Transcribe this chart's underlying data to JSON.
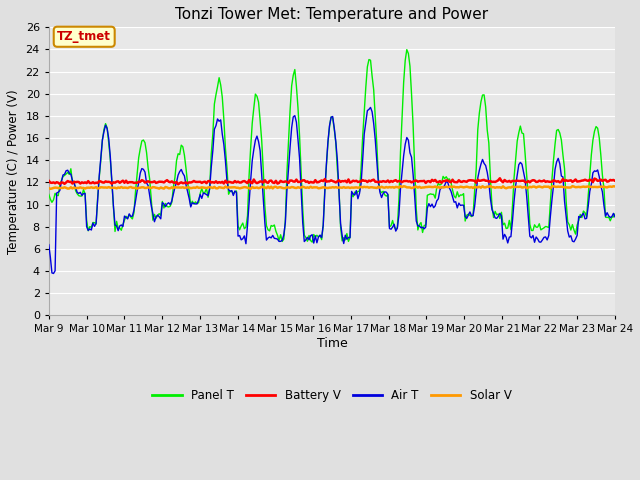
{
  "title": "Tonzi Tower Met: Temperature and Power",
  "xlabel": "Time",
  "ylabel": "Temperature (C) / Power (V)",
  "ylim": [
    0,
    26
  ],
  "yticks": [
    0,
    2,
    4,
    6,
    8,
    10,
    12,
    14,
    16,
    18,
    20,
    22,
    24,
    26
  ],
  "xtick_labels": [
    "Mar 9",
    "Mar 10",
    "Mar 11",
    "Mar 12",
    "Mar 13",
    "Mar 14",
    "Mar 15",
    "Mar 16",
    "Mar 17",
    "Mar 18",
    "Mar 19",
    "Mar 20",
    "Mar 21",
    "Mar 22",
    "Mar 23",
    "Mar 24"
  ],
  "background_color": "#e0e0e0",
  "plot_bg_color": "#e8e8e8",
  "grid_color": "#ffffff",
  "legend_labels": [
    "Panel T",
    "Battery V",
    "Air T",
    "Solar V"
  ],
  "legend_colors": [
    "#00ee00",
    "#ff0000",
    "#0000dd",
    "#ff9900"
  ],
  "annotation_text": "TZ_tmet",
  "annotation_bg": "#ffffcc",
  "annotation_border": "#cc8800",
  "annotation_text_color": "#cc0000",
  "panel_t_color": "#00ee00",
  "battery_v_color": "#ff0000",
  "air_t_color": "#0000dd",
  "solar_v_color": "#ff9900",
  "battery_v_value": 12.0,
  "solar_v_value": 11.5
}
